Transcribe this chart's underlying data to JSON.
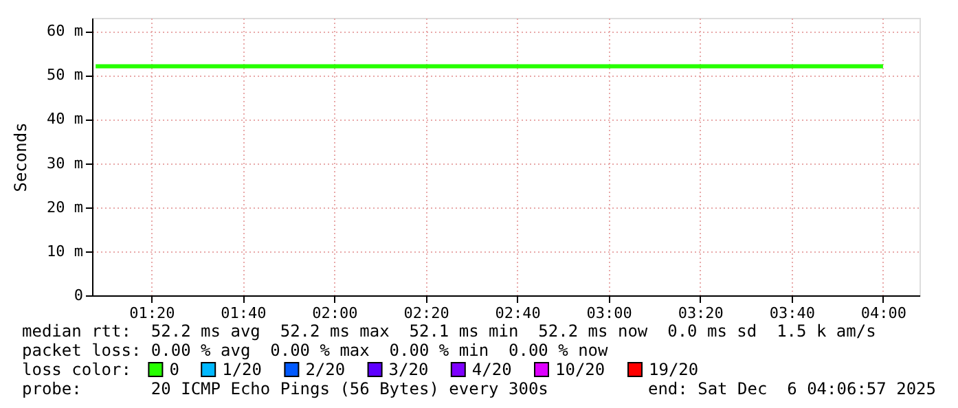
{
  "chart_data": {
    "type": "line",
    "ylabel": "Seconds",
    "legend_title": "loss color:",
    "legend": "bottom",
    "grid": true,
    "marker": "none",
    "line_style": "solid",
    "x": [
      1.13,
      4.0
    ],
    "series": [
      {
        "name": "0",
        "color": "#26ff00",
        "values": [
          52,
          52
        ]
      },
      {
        "name": "1/20",
        "color": "#00b8ff",
        "values": [
          null,
          null
        ]
      },
      {
        "name": "2/20",
        "color": "#0059ff",
        "values": [
          null,
          null
        ]
      },
      {
        "name": "3/20",
        "color": "#5e00ff",
        "values": [
          null,
          null
        ]
      },
      {
        "name": "4/20",
        "color": "#7e00ff",
        "values": [
          null,
          null
        ]
      },
      {
        "name": "10/20",
        "color": "#dd00ff",
        "values": [
          null,
          null
        ]
      },
      {
        "name": "19/20",
        "color": "#ff0000",
        "values": [
          null,
          null
        ]
      }
    ],
    "xlim": [
      1.117,
      4.133
    ],
    "xticks": [
      {
        "value": 1.3333,
        "label": "01:20"
      },
      {
        "value": 1.6667,
        "label": "01:40"
      },
      {
        "value": 2,
        "label": "02:00"
      },
      {
        "value": 2.3333,
        "label": "02:20"
      },
      {
        "value": 2.6667,
        "label": "02:40"
      },
      {
        "value": 3,
        "label": "03:00"
      },
      {
        "value": 3.3333,
        "label": "03:20"
      },
      {
        "value": 3.6667,
        "label": "03:40"
      },
      {
        "value": 4,
        "label": "04:00"
      }
    ],
    "ylim": [
      0,
      63
    ],
    "yticks": [
      0,
      {
        "value": 10,
        "label": "10 m"
      },
      {
        "value": 20,
        "label": "20 m"
      },
      {
        "value": 30,
        "label": "30 m"
      },
      {
        "value": 40,
        "label": "40 m"
      },
      {
        "value": 50,
        "label": "50 m"
      },
      {
        "value": 60,
        "label": "60 m"
      }
    ],
    "annotations": [
      "median rtt:  52.2 ms avg  52.2 ms max  52.1 ms min  52.2 ms now  0.0 ms sd  1.5 k am/s",
      "packet loss: 0.00 % avg  0.00 % max  0.00 % min  0.00 % now",
      "probe:       20 ICMP Echo Pings (56 Bytes) every 300s",
      "end: Sat Dec  6 04:06:57 2025"
    ]
  }
}
